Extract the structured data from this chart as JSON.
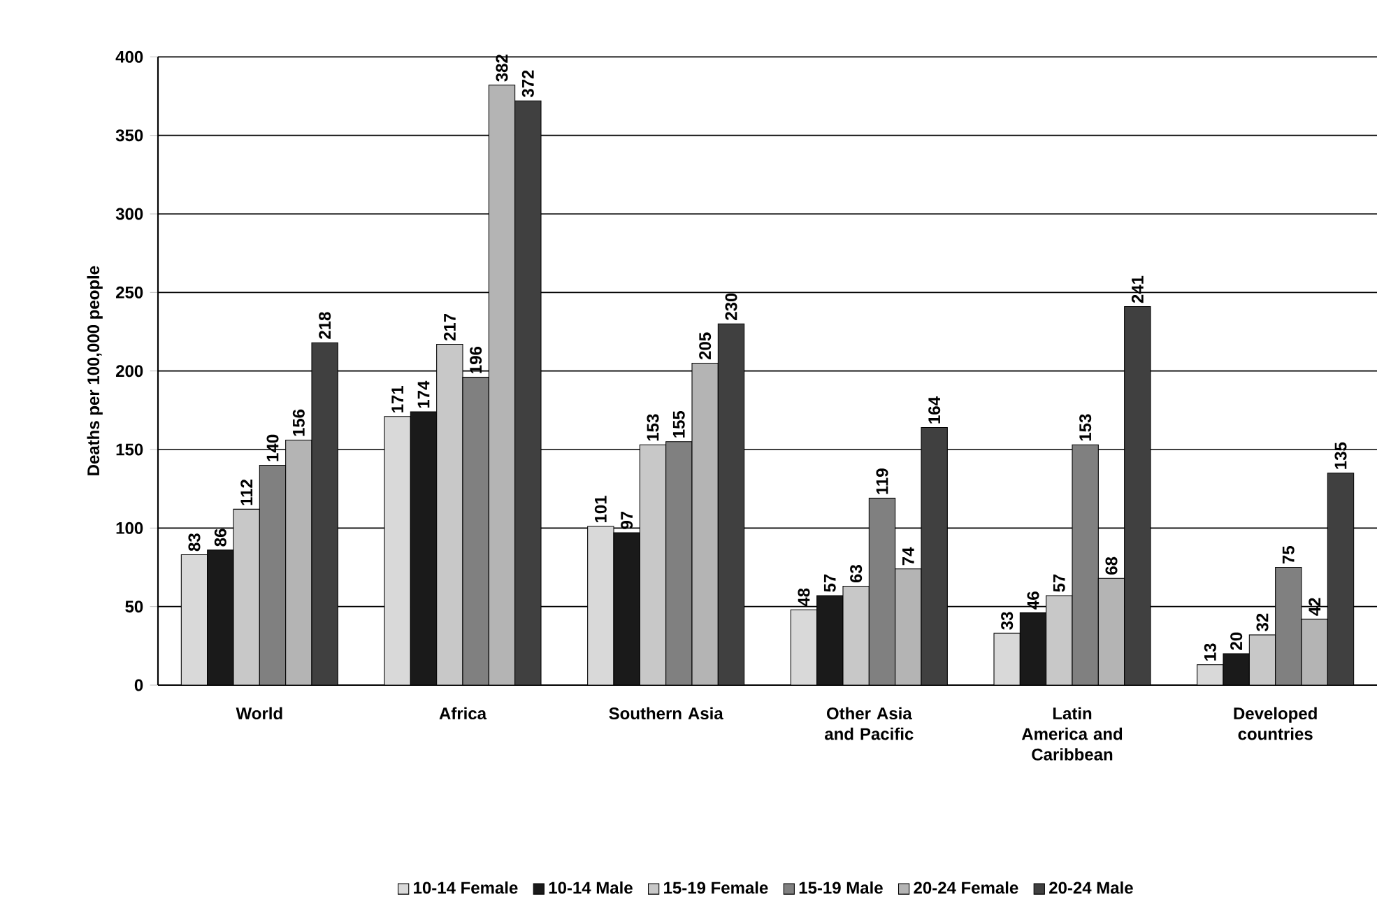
{
  "chart_data": {
    "type": "bar",
    "ylabel": "Deaths per 100,000 people",
    "categories": [
      "World",
      "Africa",
      "Southern Asia",
      "Other Asia and Pacific",
      "Latin America and Caribbean",
      "Developed countries"
    ],
    "series": [
      {
        "name": "10-14 Female",
        "color": "#d9d9d9",
        "values": [
          83,
          171,
          101,
          48,
          33,
          13
        ]
      },
      {
        "name": "10-14 Male",
        "color": "#1a1a1a",
        "values": [
          86,
          174,
          97,
          57,
          46,
          20
        ]
      },
      {
        "name": "15-19 Female",
        "color": "#c8c8c8",
        "values": [
          112,
          217,
          153,
          63,
          57,
          32
        ]
      },
      {
        "name": "15-19 Male",
        "color": "#808080",
        "values": [
          140,
          196,
          155,
          119,
          153,
          75
        ]
      },
      {
        "name": "20-24 Female",
        "color": "#b4b4b4",
        "values": [
          156,
          382,
          205,
          74,
          68,
          42
        ]
      },
      {
        "name": "20-24 Male",
        "color": "#404040",
        "values": [
          218,
          372,
          230,
          164,
          241,
          135
        ]
      }
    ],
    "ylim": [
      0,
      400
    ],
    "yticks": [
      0,
      50,
      100,
      150,
      200,
      250,
      300,
      350,
      400
    ],
    "grid": "y",
    "legend": "bottom",
    "data_labels": true
  }
}
